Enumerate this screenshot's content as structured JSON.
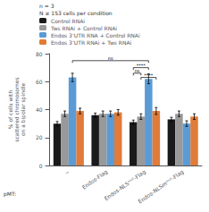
{
  "chart_data": {
    "type": "bar",
    "subtitle": "n = 3\nN ≥ 153 cells per condition",
    "ylabel": "% of cells with\nscattered chromosomes\non a bipolar spindle",
    "xlabel": "pMT:",
    "categories": [
      "−",
      "Endos-Flag",
      "Endos-NLSᵐᵘᵗ-Flag",
      "Endos-NLSmᵐᵘᵗ-Flag"
    ],
    "series": [
      {
        "name": "Control RNAi",
        "color": "#1a1a1a",
        "values": [
          30,
          36,
          31,
          33
        ],
        "errors": [
          1.5,
          1.5,
          1.5,
          1.5
        ]
      },
      {
        "name": "Tws RNAi + Control RNAi",
        "color": "#999999",
        "values": [
          37,
          37,
          35,
          37
        ],
        "errors": [
          2.0,
          2.0,
          2.0,
          2.0
        ]
      },
      {
        "name": "Endos 3’UTR RNA + Control RNAi",
        "color": "#5b9bd5",
        "values": [
          63,
          37,
          62,
          30
        ],
        "errors": [
          3.0,
          2.0,
          3.5,
          2.0
        ]
      },
      {
        "name": "Endos 3’UTR RNAi + Tws RNAi",
        "color": "#e07b39",
        "values": [
          39,
          38,
          39,
          35
        ],
        "errors": [
          2.0,
          2.0,
          2.5,
          2.0
        ]
      }
    ],
    "annotations": [
      {
        "text": "ns",
        "y": 75,
        "from": {
          "category": "−",
          "series": "Endos 3’UTR RNA + Control RNAi"
        },
        "to": {
          "category": "Endos-NLSᵐᵘᵗ-Flag",
          "series": "Endos 3’UTR RNA + Control RNAi"
        }
      },
      {
        "text": "ns",
        "y": 66,
        "from": {
          "category": "Endos-NLSᵐᵘᵗ-Flag",
          "series": "Control RNAi"
        },
        "to": {
          "category": "Endos-NLSᵐᵘᵗ-Flag",
          "series": "Tws RNAi + Control RNAi"
        }
      },
      {
        "text": "****",
        "y": 70,
        "from": {
          "category": "Endos-NLSᵐᵘᵗ-Flag",
          "series": "Control RNAi"
        },
        "to": {
          "category": "Endos-NLSᵐᵘᵗ-Flag",
          "series": "Endos 3’UTR RNA + Control RNAi"
        }
      },
      {
        "text": "****",
        "y": 63,
        "from": {
          "category": "Endos-NLSᵐᵘᵗ-Flag",
          "series": "Tws RNAi + Control RNAi"
        },
        "to": {
          "category": "Endos-NLSᵐᵘᵗ-Flag",
          "series": "Endos 3’UTR RNAi + Tws RNAi"
        }
      }
    ],
    "ylim": [
      0,
      80
    ],
    "yticks": [
      0,
      20,
      40,
      60,
      80
    ],
    "grid": false,
    "legend": "top left"
  }
}
